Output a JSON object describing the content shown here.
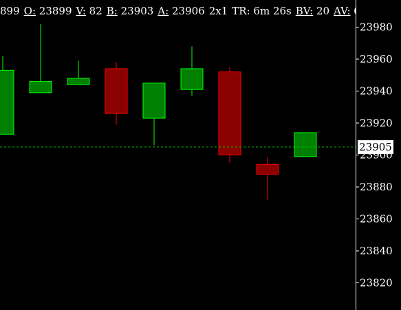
{
  "info_bar": {
    "last_fragment": "899",
    "open_label": "O:",
    "open_value": "23899",
    "volume_label": "V:",
    "volume_value": "82",
    "bid_label": "B:",
    "bid_value": "23903",
    "ask_label": "A:",
    "ask_value": "23906",
    "size": "2x1",
    "time_remaining_label": "TR:",
    "time_remaining": "6m 26s",
    "bid_volume_label": "BV:",
    "bid_volume_value": "20",
    "ask_volume_label": "AV:",
    "ask_volume_fragment": "6"
  },
  "colors": {
    "background": "#000000",
    "up_candle": "#008000",
    "up_border": "#00ff00",
    "down_candle": "#8b0000",
    "down_border": "#ff0000",
    "axis": "#ffffff",
    "current_price_line": "#00c000"
  },
  "chart_data": {
    "type": "candlestick",
    "title": "",
    "xlabel": "",
    "ylabel": "",
    "ylim": [
      23803,
      23997
    ],
    "y_ticks": [
      23820,
      23840,
      23860,
      23880,
      23900,
      23920,
      23940,
      23960,
      23980
    ],
    "grid": false,
    "current_price": 23905,
    "current_price_label": "23905",
    "candles": [
      {
        "open": 23913,
        "high": 23962,
        "low": 23913,
        "close": 23953,
        "direction": "up"
      },
      {
        "open": 23939,
        "high": 23982,
        "low": 23939,
        "close": 23946,
        "direction": "up"
      },
      {
        "open": 23944,
        "high": 23959,
        "low": 23944,
        "close": 23948,
        "direction": "up"
      },
      {
        "open": 23954,
        "high": 23958,
        "low": 23919,
        "close": 23926,
        "direction": "down"
      },
      {
        "open": 23923,
        "high": 23945,
        "low": 23906,
        "close": 23945,
        "direction": "up"
      },
      {
        "open": 23941,
        "high": 23968,
        "low": 23937,
        "close": 23954,
        "direction": "up"
      },
      {
        "open": 23952,
        "high": 23955,
        "low": 23895,
        "close": 23900,
        "direction": "down"
      },
      {
        "open": 23894,
        "high": 23899,
        "low": 23872,
        "close": 23888,
        "direction": "down"
      },
      {
        "open": 23899,
        "high": 23914,
        "low": 23899,
        "close": 23914,
        "direction": "up"
      }
    ]
  }
}
